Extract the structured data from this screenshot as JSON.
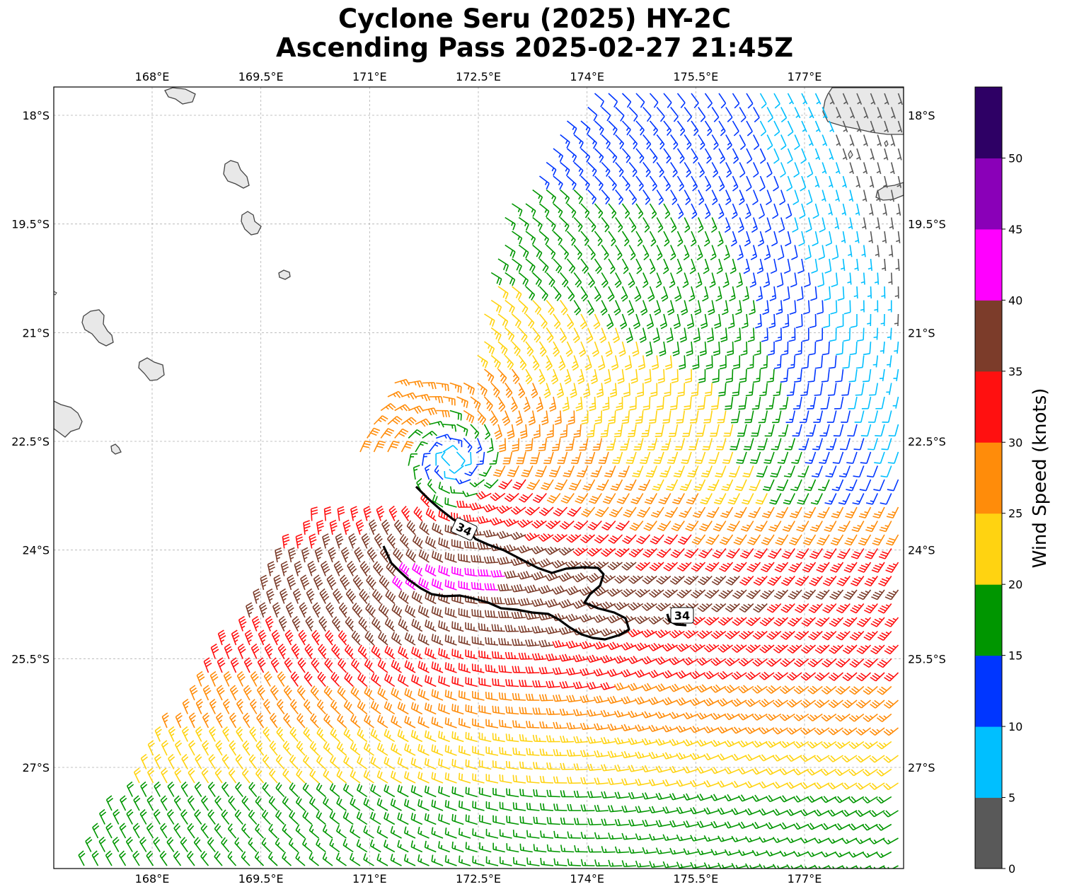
{
  "title_line1": "Cyclone Seru (2025) HY-2C",
  "title_line2": "Ascending Pass 2025-02-27 21:45Z",
  "lon_ticks": [
    "168°E",
    "169.5°E",
    "171°E",
    "172.5°E",
    "174°E",
    "175.5°E",
    "177°E"
  ],
  "lat_ticks": [
    "18°S",
    "19.5°S",
    "21°S",
    "22.5°S",
    "24°S",
    "25.5°S",
    "27°S"
  ],
  "colorbar": {
    "label": "Wind Speed (knots)",
    "tick_labels": [
      "0",
      "5",
      "10",
      "15",
      "20",
      "25",
      "30",
      "35",
      "40",
      "45",
      "50"
    ],
    "colors": [
      "#595959",
      "#00bfff",
      "#0036ff",
      "#009600",
      "#ffd311",
      "#ff8c0a",
      "#ff1010",
      "#7c3c2a",
      "#ff00ff",
      "#8a00b8",
      "#2e0065"
    ]
  },
  "contour_labels": [
    "34",
    "34"
  ],
  "map": {
    "lon_range": [
      166.6,
      178.3
    ],
    "lat_range": [
      -28.4,
      -17.6
    ],
    "storm_center": {
      "lon": 172.15,
      "lat": -22.75
    }
  }
}
